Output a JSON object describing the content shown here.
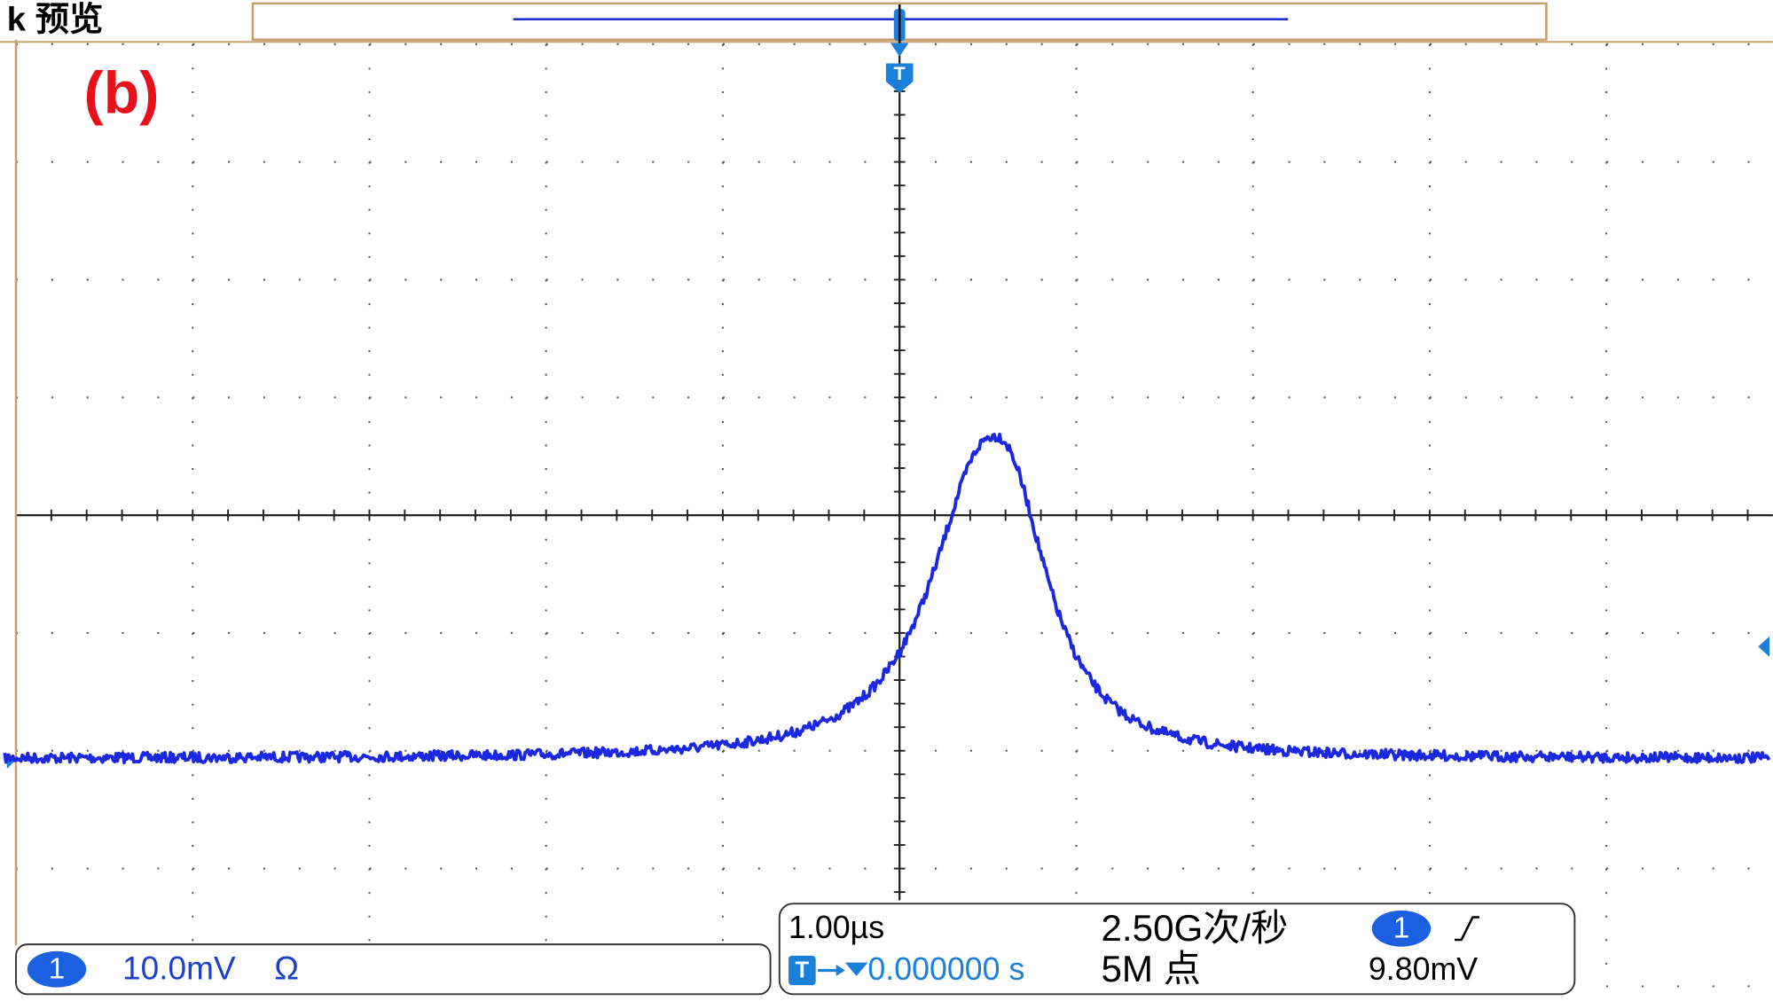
{
  "header": {
    "title": "k 预览"
  },
  "panel_label": "(b)",
  "trigger_marker": "T",
  "channel": {
    "badge": "1",
    "scale": "10.0mV",
    "impedance": "Ω"
  },
  "timebase": {
    "scale": "1.00µs",
    "trigger_position": "0.000000 s",
    "sample_rate": "2.50G次/秒",
    "record_length": "5M 点"
  },
  "trigger": {
    "source": "1",
    "level": "9.80mV"
  }
}
